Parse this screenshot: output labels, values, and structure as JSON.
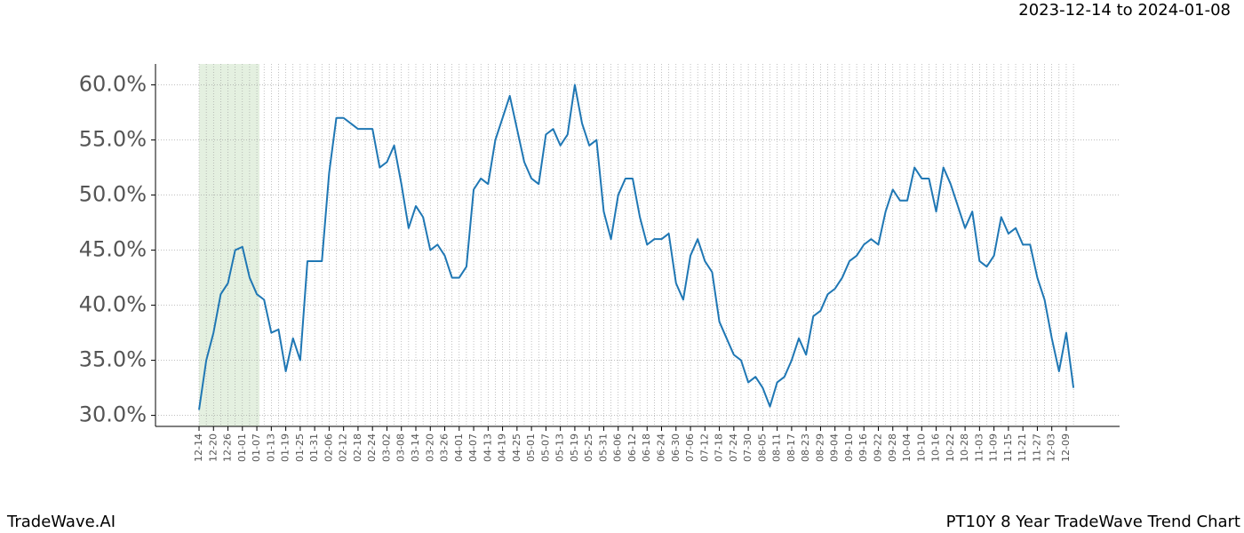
{
  "chart_data": {
    "type": "line",
    "title": "PT10Y 8 Year TradeWave Trend Chart",
    "subtitle": "2023-12-14 to 2024-01-08",
    "brand": "TradeWave.AI",
    "categories": [
      "12-14",
      null,
      "12-20",
      null,
      "12-26",
      null,
      "01-01",
      null,
      "01-07",
      null,
      "01-13",
      null,
      "01-19",
      null,
      "01-25",
      null,
      "01-31",
      null,
      "02-06",
      null,
      "02-12",
      null,
      "02-18",
      null,
      "02-24",
      null,
      "03-02",
      null,
      "03-08",
      null,
      "03-14",
      null,
      "03-20",
      null,
      "03-26",
      null,
      "04-01",
      null,
      "04-07",
      null,
      "04-13",
      null,
      "04-19",
      null,
      "04-25",
      null,
      "05-01",
      null,
      "05-07",
      null,
      "05-13",
      null,
      "05-19",
      null,
      "05-25",
      null,
      "05-31",
      null,
      "06-06",
      null,
      "06-12",
      null,
      "06-18",
      null,
      "06-24",
      null,
      "06-30",
      null,
      "07-06",
      null,
      "07-12",
      null,
      "07-18",
      null,
      "07-24",
      null,
      "07-30",
      null,
      "08-05",
      null,
      "08-11",
      null,
      "08-17",
      null,
      "08-23",
      null,
      "08-29",
      null,
      "09-04",
      null,
      "09-10",
      null,
      "09-16",
      null,
      "09-22",
      null,
      "09-28",
      null,
      "10-04",
      null,
      "10-10",
      null,
      "10-16",
      null,
      "10-22",
      null,
      "10-28",
      null,
      "11-03",
      null,
      "11-09",
      null,
      "11-15",
      null,
      "11-21",
      null,
      "11-27",
      null,
      "12-03",
      null,
      "12-09",
      null
    ],
    "series": [
      {
        "color": "#1f77b4",
        "values": [
          30.5,
          35.0,
          37.5,
          41.0,
          42.0,
          45.0,
          45.3,
          42.5,
          41.0,
          40.5,
          37.5,
          37.8,
          34.0,
          37.0,
          35.0,
          44.0,
          44.0,
          44.0,
          52.0,
          57.0,
          57.0,
          56.5,
          56.0,
          56.0,
          56.0,
          52.5,
          53.0,
          54.5,
          51.0,
          47.0,
          49.0,
          48.0,
          45.0,
          45.5,
          44.5,
          42.5,
          42.5,
          43.5,
          50.5,
          51.5,
          51.0,
          55.0,
          57.0,
          59.0,
          56.0,
          53.0,
          51.5,
          51.0,
          55.5,
          56.0,
          54.5,
          55.5,
          60.0,
          56.5,
          54.5,
          55.0,
          48.5,
          46.0,
          50.0,
          51.5,
          51.5,
          48.0,
          45.5,
          46.0,
          46.0,
          46.5,
          42.0,
          40.5,
          44.5,
          46.0,
          44.0,
          43.0,
          38.5,
          37.0,
          35.5,
          35.0,
          33.0,
          33.5,
          32.5,
          30.8,
          33.0,
          33.5,
          35.0,
          37.0,
          35.5,
          39.0,
          39.5,
          41.0,
          41.5,
          42.5,
          44.0,
          44.5,
          45.5,
          46.0,
          45.5,
          48.5,
          50.5,
          49.5,
          49.5,
          52.5,
          51.5,
          51.5,
          48.5,
          52.5,
          51.0,
          49.0,
          47.0,
          48.5,
          44.0,
          43.5,
          44.5,
          48.0,
          46.5,
          47.0,
          45.5,
          45.5,
          42.5,
          40.5,
          37.0,
          34.0,
          37.5,
          32.5
        ]
      }
    ],
    "ylim": [
      29.0,
      61.9
    ],
    "yticks": [
      {
        "value": 30,
        "label": "30.0%"
      },
      {
        "value": 35,
        "label": "35.0%"
      },
      {
        "value": 40,
        "label": "40.0%"
      },
      {
        "value": 45,
        "label": "45.0%"
      },
      {
        "value": 50,
        "label": "50.0%"
      },
      {
        "value": 55,
        "label": "55.0%"
      },
      {
        "value": 60,
        "label": "60.0%"
      }
    ],
    "grid": true
  }
}
